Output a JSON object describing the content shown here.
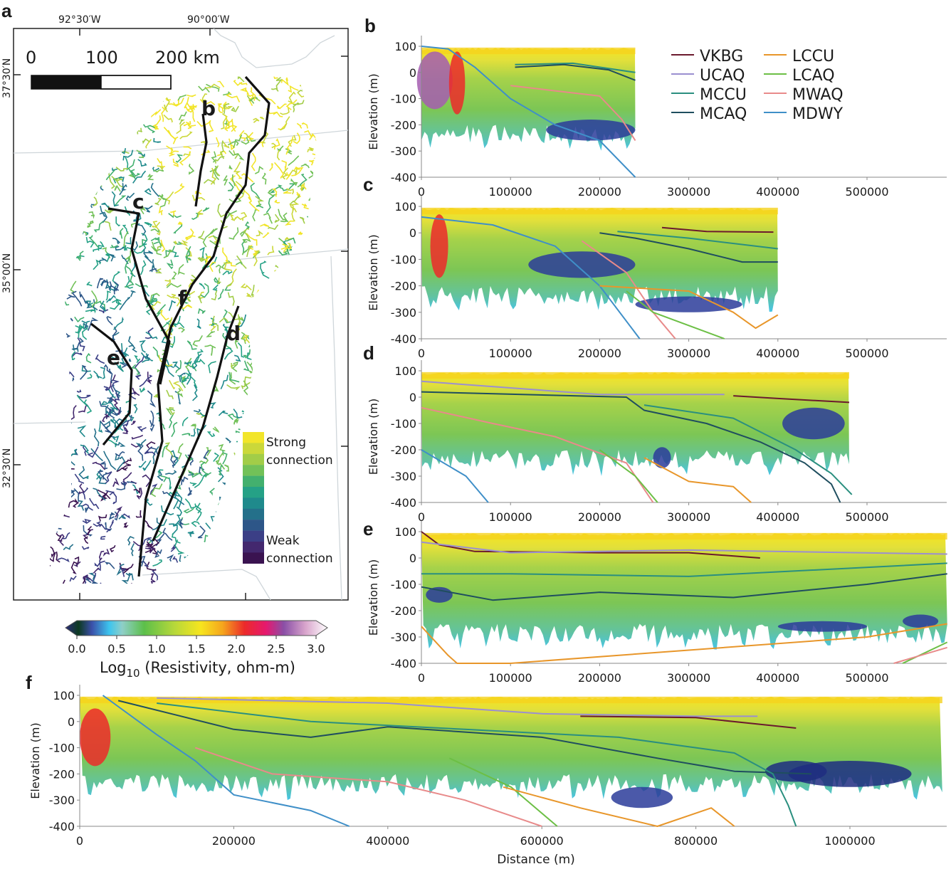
{
  "panel_labels": {
    "a": "a",
    "b": "b",
    "c": "c",
    "d": "d",
    "e": "e",
    "f": "f"
  },
  "map": {
    "lon_ticks": [
      "92°30′W",
      "90°00′W"
    ],
    "lat_ticks": [
      "37°30′N",
      "35°00′N",
      "32°30′N"
    ],
    "scale_bar": {
      "labels": [
        "0",
        "100",
        "200 km"
      ]
    },
    "transect_labels": [
      "b",
      "c",
      "d",
      "e",
      "f"
    ],
    "legend": {
      "top_label_1": "Strong",
      "top_label_2": "connection",
      "bottom_label_1": "Weak",
      "bottom_label_2": "connection",
      "colors": [
        "#f2e52a",
        "#cbd83a",
        "#a2cd48",
        "#72c158",
        "#43b06e",
        "#25a186",
        "#1f8a8c",
        "#24708a",
        "#2d5688",
        "#3b3f86",
        "#43286e",
        "#3a1350"
      ]
    }
  },
  "colorbar": {
    "ticks": [
      "0.0",
      "0.5",
      "1.0",
      "1.5",
      "2.0",
      "2.5",
      "3.0"
    ],
    "label_main": "Log",
    "label_sub": "10",
    "label_rest": " (Resistivity, ohm-m)",
    "range": [
      0,
      3
    ],
    "stops": [
      [
        0,
        "#2b2a7a"
      ],
      [
        0.15,
        "#0c3a20"
      ],
      [
        0.3,
        "#3b4fa8"
      ],
      [
        0.5,
        "#3cc4ee"
      ],
      [
        0.65,
        "#8fcfc8"
      ],
      [
        0.9,
        "#5cbf4a"
      ],
      [
        1.25,
        "#b7d83a"
      ],
      [
        1.55,
        "#f7e51e"
      ],
      [
        1.8,
        "#f5a51d"
      ],
      [
        2.05,
        "#ec2a2a"
      ],
      [
        2.3,
        "#e5196f"
      ],
      [
        2.5,
        "#8a4fa6"
      ],
      [
        2.75,
        "#d9a5cc"
      ],
      [
        3.0,
        "#ffffff"
      ]
    ]
  },
  "legend": [
    {
      "name": "VKBG",
      "color": "#6b1a2e"
    },
    {
      "name": "UCAQ",
      "color": "#9b8fd0"
    },
    {
      "name": "MCCU",
      "color": "#2a8f7f"
    },
    {
      "name": "MCAQ",
      "color": "#1f4e5f"
    },
    {
      "name": "LCCU",
      "color": "#e8962a"
    },
    {
      "name": "LCAQ",
      "color": "#6cbf45"
    },
    {
      "name": "MWAQ",
      "color": "#e88a8a"
    },
    {
      "name": "MDWY",
      "color": "#3f8fc8"
    }
  ],
  "chart_data": [
    {
      "panel": "b",
      "type": "line",
      "ylabel": "Elevation (m)",
      "xlabel": "",
      "xlim": [
        0,
        590000
      ],
      "ylim": [
        -400,
        100
      ],
      "xticks": [
        "0",
        "100000",
        "200000",
        "300000",
        "400000",
        "500000"
      ],
      "yticks": [
        "100",
        "0",
        "-100",
        "-200",
        "-300",
        "-400"
      ],
      "section_extent_m": 240000,
      "series": [
        {
          "name": "MDWY",
          "points": [
            [
              0,
              100
            ],
            [
              30000,
              90
            ],
            [
              60000,
              20
            ],
            [
              100000,
              -100
            ],
            [
              150000,
              -200
            ],
            [
              200000,
              -260
            ],
            [
              240000,
              -400
            ]
          ]
        },
        {
          "name": "MWAQ",
          "points": [
            [
              100000,
              -50
            ],
            [
              150000,
              -70
            ],
            [
              200000,
              -90
            ],
            [
              225000,
              -180
            ],
            [
              240000,
              -260
            ]
          ]
        },
        {
          "name": "MCCU",
          "points": [
            [
              105000,
              30
            ],
            [
              170000,
              35
            ],
            [
              240000,
              0
            ]
          ]
        },
        {
          "name": "MCAQ",
          "points": [
            [
              105000,
              20
            ],
            [
              160000,
              30
            ],
            [
              210000,
              10
            ],
            [
              240000,
              -30
            ]
          ]
        }
      ]
    },
    {
      "panel": "c",
      "type": "line",
      "ylabel": "Elevation (m)",
      "xlabel": "",
      "xlim": [
        0,
        590000
      ],
      "ylim": [
        -400,
        100
      ],
      "xticks": [
        "0",
        "100000",
        "200000",
        "300000",
        "400000",
        "500000"
      ],
      "yticks": [
        "100",
        "0",
        "-100",
        "-200",
        "-300",
        "-400"
      ],
      "section_extent_m": 400000,
      "series": [
        {
          "name": "MDWY",
          "points": [
            [
              0,
              60
            ],
            [
              80000,
              30
            ],
            [
              150000,
              -50
            ],
            [
              200000,
              -200
            ],
            [
              245000,
              -400
            ]
          ]
        },
        {
          "name": "MWAQ",
          "points": [
            [
              180000,
              -30
            ],
            [
              230000,
              -150
            ],
            [
              260000,
              -300
            ],
            [
              285000,
              -400
            ]
          ]
        },
        {
          "name": "LCAQ",
          "points": [
            [
              230000,
              -220
            ],
            [
              260000,
              -300
            ],
            [
              340000,
              -400
            ]
          ]
        },
        {
          "name": "LCCU",
          "points": [
            [
              200000,
              -200
            ],
            [
              300000,
              -220
            ],
            [
              350000,
              -300
            ],
            [
              375000,
              -360
            ],
            [
              400000,
              -310
            ]
          ]
        },
        {
          "name": "MCAQ",
          "points": [
            [
              200000,
              0
            ],
            [
              240000,
              -20
            ],
            [
              300000,
              -60
            ],
            [
              360000,
              -110
            ],
            [
              400000,
              -110
            ]
          ]
        },
        {
          "name": "MCCU",
          "points": [
            [
              220000,
              5
            ],
            [
              300000,
              -20
            ],
            [
              400000,
              -60
            ]
          ]
        },
        {
          "name": "VKBG",
          "points": [
            [
              270000,
              20
            ],
            [
              320000,
              5
            ],
            [
              395000,
              3
            ]
          ]
        }
      ]
    },
    {
      "panel": "d",
      "type": "line",
      "ylabel": "Elevation (m)",
      "xlabel": "",
      "xlim": [
        0,
        590000
      ],
      "ylim": [
        -400,
        100
      ],
      "xticks": [
        "0",
        "100000",
        "200000",
        "300000",
        "400000",
        "500000"
      ],
      "yticks": [
        "100",
        "0",
        "-100",
        "-200",
        "-300",
        "-400"
      ],
      "section_extent_m": 480000,
      "series": [
        {
          "name": "VKBG",
          "points": [
            [
              350000,
              5
            ],
            [
              400000,
              -5
            ],
            [
              480000,
              -20
            ]
          ]
        },
        {
          "name": "UCAQ",
          "points": [
            [
              0,
              60
            ],
            [
              200000,
              10
            ],
            [
              340000,
              10
            ]
          ]
        },
        {
          "name": "MCAQ",
          "points": [
            [
              0,
              20
            ],
            [
              230000,
              0
            ],
            [
              250000,
              -50
            ],
            [
              320000,
              -100
            ],
            [
              380000,
              -170
            ],
            [
              430000,
              -250
            ],
            [
              460000,
              -330
            ],
            [
              470000,
              -400
            ]
          ]
        },
        {
          "name": "MCCU",
          "points": [
            [
              250000,
              -30
            ],
            [
              350000,
              -80
            ],
            [
              420000,
              -200
            ],
            [
              460000,
              -290
            ],
            [
              483000,
              -370
            ]
          ]
        },
        {
          "name": "MWAQ",
          "points": [
            [
              0,
              -40
            ],
            [
              80000,
              -100
            ],
            [
              150000,
              -150
            ],
            [
              230000,
              -250
            ],
            [
              260000,
              -400
            ]
          ]
        },
        {
          "name": "LCAQ",
          "points": [
            [
              200000,
              -200
            ],
            [
              240000,
              -300
            ],
            [
              265000,
              -400
            ]
          ]
        },
        {
          "name": "LCCU",
          "points": [
            [
              250000,
              -230
            ],
            [
              300000,
              -320
            ],
            [
              350000,
              -340
            ],
            [
              370000,
              -400
            ]
          ]
        },
        {
          "name": "MDWY",
          "points": [
            [
              0,
              -200
            ],
            [
              50000,
              -300
            ],
            [
              75000,
              -400
            ]
          ]
        }
      ]
    },
    {
      "panel": "e",
      "type": "line",
      "ylabel": "Elevation (m)",
      "xlabel": "",
      "xlim": [
        0,
        590000
      ],
      "ylim": [
        -400,
        100
      ],
      "xticks": [
        "0",
        "100000",
        "200000",
        "300000",
        "400000",
        "500000"
      ],
      "yticks": [
        "100",
        "0",
        "-100",
        "-200",
        "-300",
        "-400"
      ],
      "section_extent_m": 590000,
      "series": [
        {
          "name": "VKBG",
          "points": [
            [
              0,
              100
            ],
            [
              20000,
              50
            ],
            [
              60000,
              25
            ],
            [
              200000,
              20
            ],
            [
              300000,
              20
            ],
            [
              380000,
              0
            ]
          ]
        },
        {
          "name": "UCAQ",
          "points": [
            [
              0,
              60
            ],
            [
              100000,
              20
            ],
            [
              300000,
              30
            ],
            [
              590000,
              15
            ]
          ]
        },
        {
          "name": "MCCU",
          "points": [
            [
              0,
              -60
            ],
            [
              100000,
              -60
            ],
            [
              300000,
              -70
            ],
            [
              590000,
              -20
            ]
          ]
        },
        {
          "name": "MCAQ",
          "points": [
            [
              0,
              -110
            ],
            [
              80000,
              -160
            ],
            [
              200000,
              -130
            ],
            [
              350000,
              -150
            ],
            [
              500000,
              -100
            ],
            [
              590000,
              -60
            ]
          ]
        },
        {
          "name": "LCCU",
          "points": [
            [
              0,
              -260
            ],
            [
              30000,
              -370
            ],
            [
              40000,
              -400
            ],
            [
              100000,
              -400
            ],
            [
              300000,
              -350
            ],
            [
              500000,
              -300
            ],
            [
              590000,
              -250
            ]
          ]
        },
        {
          "name": "LCAQ",
          "points": [
            [
              540000,
              -400
            ],
            [
              590000,
              -320
            ]
          ]
        },
        {
          "name": "MWAQ",
          "points": [
            [
              530000,
              -400
            ],
            [
              590000,
              -340
            ]
          ]
        }
      ]
    },
    {
      "panel": "f",
      "type": "line",
      "ylabel": "Elevation (m)",
      "xlabel": "Distance (m)",
      "xlim": [
        0,
        1120000
      ],
      "ylim": [
        -400,
        100
      ],
      "xticks": [
        "0",
        "200000",
        "400000",
        "600000",
        "800000",
        "1000000"
      ],
      "yticks": [
        "100",
        "0",
        "-100",
        "-200",
        "-300",
        "-400"
      ],
      "section_extent_m": 1120000,
      "series": [
        {
          "name": "MDWY",
          "points": [
            [
              30000,
              100
            ],
            [
              100000,
              -50
            ],
            [
              150000,
              -150
            ],
            [
              200000,
              -280
            ],
            [
              300000,
              -340
            ],
            [
              350000,
              -400
            ]
          ]
        },
        {
          "name": "MWAQ",
          "points": [
            [
              150000,
              -100
            ],
            [
              250000,
              -200
            ],
            [
              400000,
              -230
            ],
            [
              500000,
              -300
            ],
            [
              580000,
              -380
            ],
            [
              600000,
              -400
            ]
          ]
        },
        {
          "name": "LCAQ",
          "points": [
            [
              480000,
              -140
            ],
            [
              560000,
              -250
            ],
            [
              620000,
              -400
            ]
          ]
        },
        {
          "name": "LCCU",
          "points": [
            [
              550000,
              -250
            ],
            [
              650000,
              -330
            ],
            [
              750000,
              -400
            ],
            [
              820000,
              -330
            ],
            [
              850000,
              -400
            ]
          ]
        },
        {
          "name": "MCAQ",
          "points": [
            [
              50000,
              80
            ],
            [
              200000,
              -30
            ],
            [
              300000,
              -60
            ],
            [
              400000,
              -20
            ],
            [
              600000,
              -60
            ],
            [
              750000,
              -140
            ],
            [
              850000,
              -190
            ],
            [
              950000,
              -200
            ]
          ]
        },
        {
          "name": "MCCU",
          "points": [
            [
              100000,
              70
            ],
            [
              300000,
              0
            ],
            [
              500000,
              -30
            ],
            [
              700000,
              -60
            ],
            [
              850000,
              -120
            ],
            [
              900000,
              -200
            ],
            [
              920000,
              -320
            ],
            [
              930000,
              -400
            ]
          ]
        },
        {
          "name": "UCAQ",
          "points": [
            [
              100000,
              90
            ],
            [
              400000,
              70
            ],
            [
              600000,
              30
            ],
            [
              800000,
              20
            ],
            [
              880000,
              20
            ]
          ]
        },
        {
          "name": "VKBG",
          "points": [
            [
              650000,
              20
            ],
            [
              800000,
              15
            ],
            [
              930000,
              -25
            ]
          ]
        }
      ]
    }
  ]
}
